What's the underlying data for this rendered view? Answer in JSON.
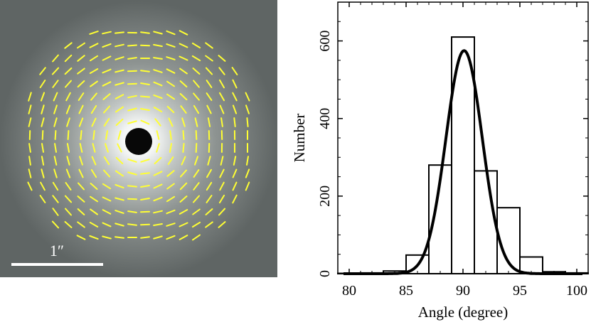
{
  "image_panel": {
    "scale_bar_label": "1″",
    "vector_color": "#ffff33",
    "background_color": "#6f7574"
  },
  "chart_data": {
    "type": "bar",
    "title": "",
    "xlabel": "Angle (degree)",
    "ylabel": "Number",
    "xlim": [
      79,
      101
    ],
    "ylim": [
      0,
      700
    ],
    "x_ticks": [
      80,
      85,
      90,
      95,
      100
    ],
    "y_ticks": [
      0,
      200,
      400,
      600
    ],
    "bin_width": 2,
    "bins": [
      {
        "center": 80,
        "value": 1
      },
      {
        "center": 82,
        "value": 2
      },
      {
        "center": 84,
        "value": 7
      },
      {
        "center": 86,
        "value": 48
      },
      {
        "center": 88,
        "value": 280
      },
      {
        "center": 90,
        "value": 610
      },
      {
        "center": 92,
        "value": 265
      },
      {
        "center": 94,
        "value": 170
      },
      {
        "center": 96,
        "value": 43
      },
      {
        "center": 98,
        "value": 5
      },
      {
        "center": 100,
        "value": 2
      }
    ],
    "fit": {
      "type": "gaussian",
      "amplitude": 575,
      "mean": 90.1,
      "sigma": 1.6
    }
  }
}
